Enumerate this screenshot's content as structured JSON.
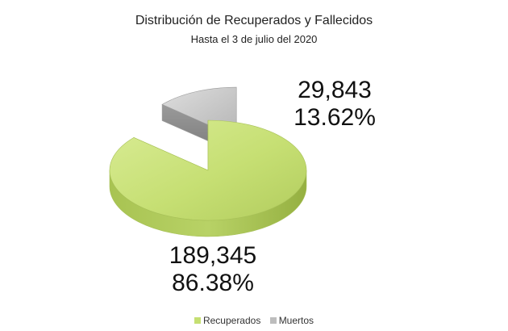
{
  "chart_data": {
    "type": "pie",
    "title": "Distribución de Recuperados y Fallecidos",
    "subtitle": "Hasta el 3 de julio del 2020",
    "slices": [
      {
        "name": "Recuperados",
        "value": 189345,
        "value_label": "189,345",
        "percent_label": "86.38%",
        "color": "#c5df72",
        "exploded": false
      },
      {
        "name": "Muertos",
        "value": 29843,
        "value_label": "29,843",
        "percent_label": "13.62%",
        "color": "#bdbdbd",
        "exploded": true
      }
    ],
    "legend": {
      "position": "bottom"
    }
  }
}
